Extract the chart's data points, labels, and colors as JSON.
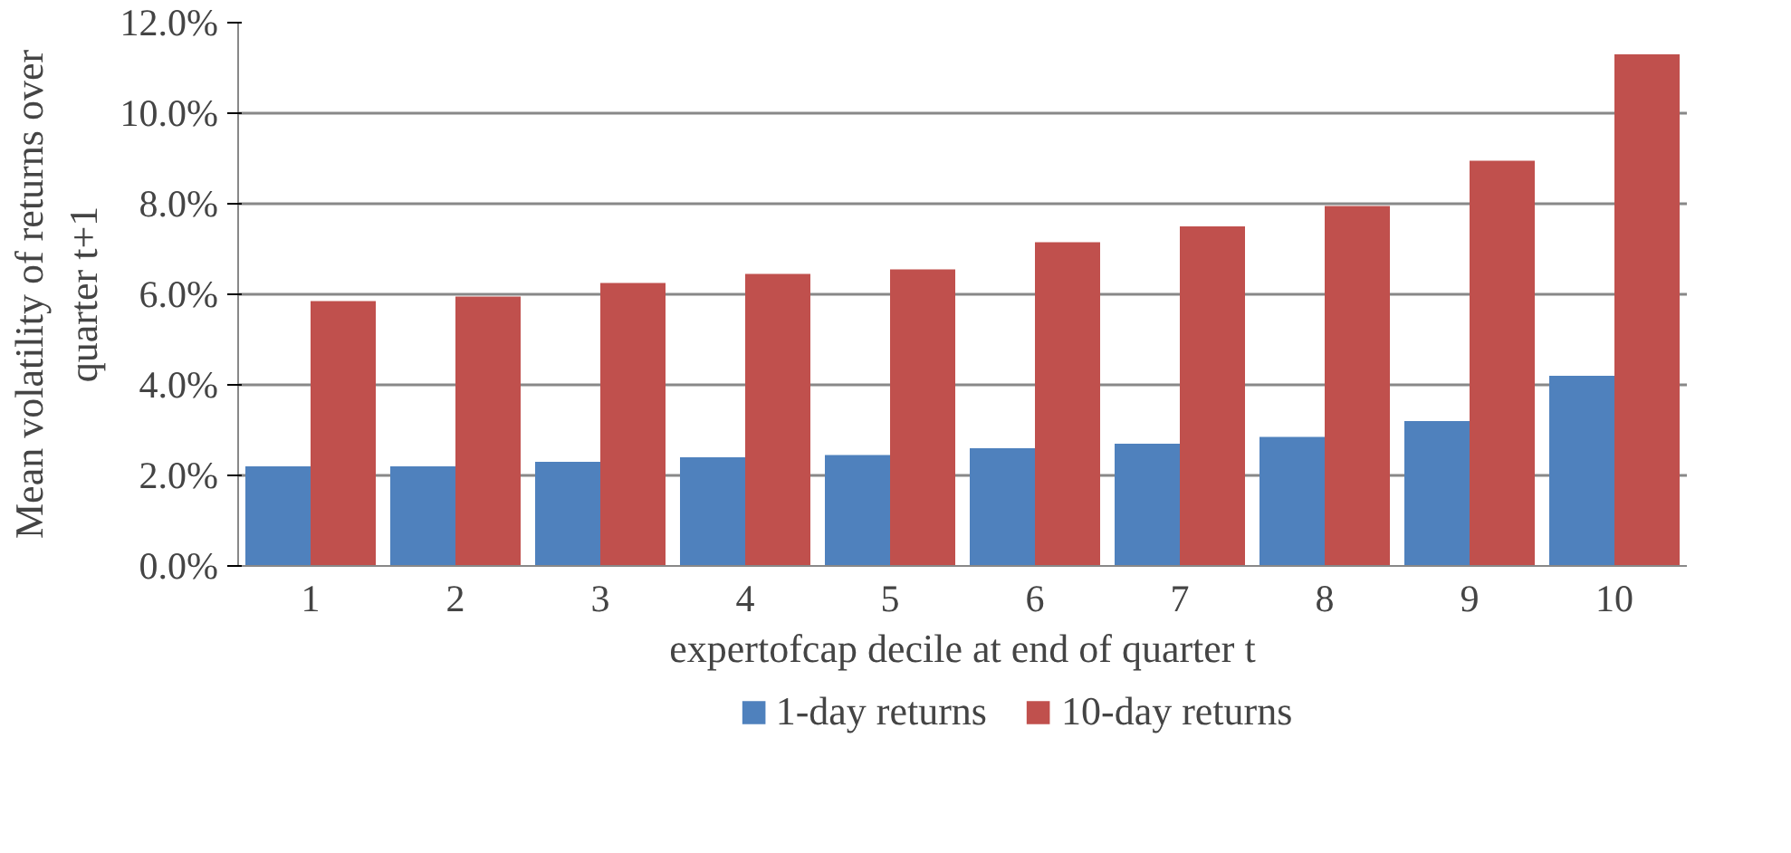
{
  "chart_data": {
    "type": "bar",
    "xlabel": "expertofcap decile at end of quarter t",
    "ylabel": "Mean volatility of returns over quarter t+1",
    "categories": [
      "1",
      "2",
      "3",
      "4",
      "5",
      "6",
      "7",
      "8",
      "9",
      "10"
    ],
    "series": [
      {
        "name": "1-day returns",
        "color": "#4f81bd",
        "values": [
          2.2,
          2.2,
          2.3,
          2.4,
          2.45,
          2.6,
          2.7,
          2.85,
          3.2,
          4.2
        ]
      },
      {
        "name": "10-day returns",
        "color": "#c0504d",
        "values": [
          5.85,
          5.95,
          6.25,
          6.45,
          6.55,
          7.15,
          7.5,
          7.95,
          8.95,
          11.3
        ]
      }
    ],
    "ylim": [
      0,
      12
    ],
    "yticks": [
      {
        "value": 0,
        "label": "0.0%"
      },
      {
        "value": 2,
        "label": "2.0%"
      },
      {
        "value": 4,
        "label": "4.0%"
      },
      {
        "value": 6,
        "label": "6.0%"
      },
      {
        "value": 8,
        "label": "8.0%"
      },
      {
        "value": 10,
        "label": "10.0%"
      },
      {
        "value": 12,
        "label": "12.0%"
      }
    ],
    "grid": "y",
    "legend": "bottom"
  }
}
